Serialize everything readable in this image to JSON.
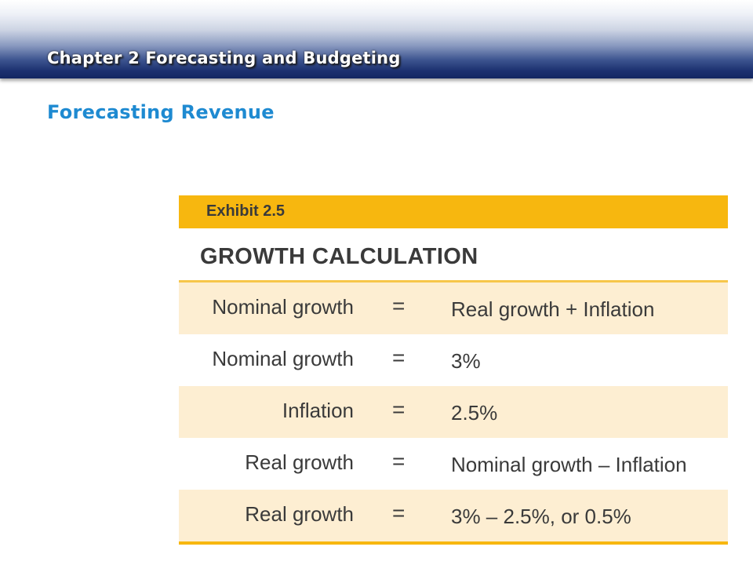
{
  "header": {
    "chapter_title": "Chapter 2 Forecasting and Budgeting"
  },
  "section": {
    "title": "Forecasting Revenue"
  },
  "exhibit": {
    "label": "Exhibit 2.5",
    "heading": "GROWTH CALCULATION",
    "rows": [
      {
        "lhs": "Nominal growth",
        "eq": "=",
        "rhs": "Real growth + Inflation",
        "shaded": true
      },
      {
        "lhs": "Nominal growth",
        "eq": "=",
        "rhs": "3%",
        "shaded": false
      },
      {
        "lhs": "Inflation",
        "eq": "=",
        "rhs": "2.5%",
        "shaded": true
      },
      {
        "lhs": "Real growth",
        "eq": "=",
        "rhs": "Nominal growth – Inflation",
        "shaded": false
      },
      {
        "lhs": "Real growth",
        "eq": "=",
        "rhs": "3% – 2.5%, or 0.5%",
        "shaded": true
      }
    ]
  },
  "colors": {
    "header_navy": "#132661",
    "section_blue": "#1e8ad1",
    "exhibit_gold": "#f7b70f",
    "row_shade": "#fdeed2",
    "text_dark": "#3a3a3a"
  }
}
